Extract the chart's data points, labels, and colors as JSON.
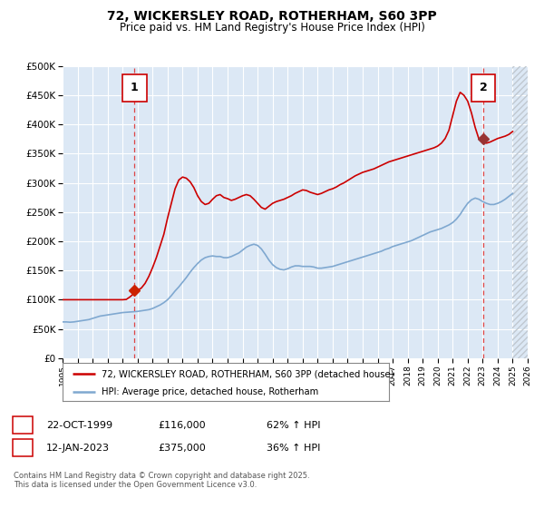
{
  "title": "72, WICKERSLEY ROAD, ROTHERHAM, S60 3PP",
  "subtitle": "Price paid vs. HM Land Registry's House Price Index (HPI)",
  "xlim": [
    1995,
    2026
  ],
  "ylim": [
    0,
    500000
  ],
  "yticks": [
    0,
    50000,
    100000,
    150000,
    200000,
    250000,
    300000,
    350000,
    400000,
    450000,
    500000
  ],
  "ytick_labels": [
    "£0",
    "£50K",
    "£100K",
    "£150K",
    "£200K",
    "£250K",
    "£300K",
    "£350K",
    "£400K",
    "£450K",
    "£500K"
  ],
  "xticks": [
    1995,
    1996,
    1997,
    1998,
    1999,
    2000,
    2001,
    2002,
    2003,
    2004,
    2005,
    2006,
    2007,
    2008,
    2009,
    2010,
    2011,
    2012,
    2013,
    2014,
    2015,
    2016,
    2017,
    2018,
    2019,
    2020,
    2021,
    2022,
    2023,
    2024,
    2025,
    2026
  ],
  "bg_color": "#dce8f5",
  "grid_color": "#ffffff",
  "hpi_line_color": "#7fa8d0",
  "price_line_color": "#cc0000",
  "marker1_color": "#cc2200",
  "marker2_color": "#993333",
  "vline_color": "#dd4444",
  "sale1_x": 1999.8,
  "sale1_y": 116000,
  "sale2_x": 2023.04,
  "sale2_y": 375000,
  "legend_label1": "72, WICKERSLEY ROAD, ROTHERHAM, S60 3PP (detached house)",
  "legend_label2": "HPI: Average price, detached house, Rotherham",
  "sale1_date": "22-OCT-1999",
  "sale1_price": "£116,000",
  "sale1_hpi": "62% ↑ HPI",
  "sale2_date": "12-JAN-2023",
  "sale2_price": "£375,000",
  "sale2_hpi": "36% ↑ HPI",
  "footer": "Contains HM Land Registry data © Crown copyright and database right 2025.\nThis data is licensed under the Open Government Licence v3.0.",
  "hpi_data_x": [
    1995.0,
    1995.25,
    1995.5,
    1995.75,
    1996.0,
    1996.25,
    1996.5,
    1996.75,
    1997.0,
    1997.25,
    1997.5,
    1997.75,
    1998.0,
    1998.25,
    1998.5,
    1998.75,
    1999.0,
    1999.25,
    1999.5,
    1999.75,
    2000.0,
    2000.25,
    2000.5,
    2000.75,
    2001.0,
    2001.25,
    2001.5,
    2001.75,
    2002.0,
    2002.25,
    2002.5,
    2002.75,
    2003.0,
    2003.25,
    2003.5,
    2003.75,
    2004.0,
    2004.25,
    2004.5,
    2004.75,
    2005.0,
    2005.25,
    2005.5,
    2005.75,
    2006.0,
    2006.25,
    2006.5,
    2006.75,
    2007.0,
    2007.25,
    2007.5,
    2007.75,
    2008.0,
    2008.25,
    2008.5,
    2008.75,
    2009.0,
    2009.25,
    2009.5,
    2009.75,
    2010.0,
    2010.25,
    2010.5,
    2010.75,
    2011.0,
    2011.25,
    2011.5,
    2011.75,
    2012.0,
    2012.25,
    2012.5,
    2012.75,
    2013.0,
    2013.25,
    2013.5,
    2013.75,
    2014.0,
    2014.25,
    2014.5,
    2014.75,
    2015.0,
    2015.25,
    2015.5,
    2015.75,
    2016.0,
    2016.25,
    2016.5,
    2016.75,
    2017.0,
    2017.25,
    2017.5,
    2017.75,
    2018.0,
    2018.25,
    2018.5,
    2018.75,
    2019.0,
    2019.25,
    2019.5,
    2019.75,
    2020.0,
    2020.25,
    2020.5,
    2020.75,
    2021.0,
    2021.25,
    2021.5,
    2021.75,
    2022.0,
    2022.25,
    2022.5,
    2022.75,
    2023.0,
    2023.25,
    2023.5,
    2023.75,
    2024.0,
    2024.25,
    2024.5,
    2024.75,
    2025.0
  ],
  "hpi_data_y": [
    62000,
    62000,
    61500,
    62000,
    63000,
    64000,
    65000,
    66000,
    68000,
    70000,
    72000,
    73000,
    74000,
    75000,
    76000,
    77000,
    78000,
    78500,
    79000,
    79500,
    80000,
    81000,
    82000,
    83000,
    85000,
    88000,
    91000,
    95000,
    100000,
    107000,
    115000,
    122000,
    130000,
    138000,
    147000,
    155000,
    162000,
    168000,
    172000,
    174000,
    175000,
    174000,
    174000,
    172000,
    172000,
    174000,
    177000,
    180000,
    185000,
    190000,
    193000,
    195000,
    193000,
    187000,
    178000,
    168000,
    160000,
    155000,
    152000,
    151000,
    153000,
    156000,
    158000,
    158000,
    157000,
    157000,
    157000,
    156000,
    154000,
    154000,
    155000,
    156000,
    157000,
    159000,
    161000,
    163000,
    165000,
    167000,
    169000,
    171000,
    173000,
    175000,
    177000,
    179000,
    181000,
    183000,
    186000,
    188000,
    191000,
    193000,
    195000,
    197000,
    199000,
    201000,
    204000,
    207000,
    210000,
    213000,
    216000,
    218000,
    220000,
    222000,
    225000,
    228000,
    232000,
    238000,
    246000,
    256000,
    265000,
    271000,
    274000,
    272000,
    268000,
    265000,
    263000,
    263000,
    265000,
    268000,
    272000,
    277000,
    282000
  ],
  "price_data_x": [
    1995.0,
    1995.25,
    1995.5,
    1995.75,
    1996.0,
    1996.25,
    1996.5,
    1996.75,
    1997.0,
    1997.25,
    1997.5,
    1997.75,
    1998.0,
    1998.25,
    1998.5,
    1998.75,
    1999.0,
    1999.25,
    1999.5,
    1999.75,
    2000.0,
    2000.25,
    2000.5,
    2000.75,
    2001.0,
    2001.25,
    2001.5,
    2001.75,
    2002.0,
    2002.25,
    2002.5,
    2002.75,
    2003.0,
    2003.25,
    2003.5,
    2003.75,
    2004.0,
    2004.25,
    2004.5,
    2004.75,
    2005.0,
    2005.25,
    2005.5,
    2005.75,
    2006.0,
    2006.25,
    2006.5,
    2006.75,
    2007.0,
    2007.25,
    2007.5,
    2007.75,
    2008.0,
    2008.25,
    2008.5,
    2008.75,
    2009.0,
    2009.25,
    2009.5,
    2009.75,
    2010.0,
    2010.25,
    2010.5,
    2010.75,
    2011.0,
    2011.25,
    2011.5,
    2011.75,
    2012.0,
    2012.25,
    2012.5,
    2012.75,
    2013.0,
    2013.25,
    2013.5,
    2013.75,
    2014.0,
    2014.25,
    2014.5,
    2014.75,
    2015.0,
    2015.25,
    2015.5,
    2015.75,
    2016.0,
    2016.25,
    2016.5,
    2016.75,
    2017.0,
    2017.25,
    2017.5,
    2017.75,
    2018.0,
    2018.25,
    2018.5,
    2018.75,
    2019.0,
    2019.25,
    2019.5,
    2019.75,
    2020.0,
    2020.25,
    2020.5,
    2020.75,
    2021.0,
    2021.25,
    2021.5,
    2021.75,
    2022.0,
    2022.25,
    2022.5,
    2022.75,
    2023.0,
    2023.25,
    2023.5,
    2023.75,
    2024.0,
    2024.25,
    2024.5,
    2024.75,
    2025.0
  ],
  "price_data_y": [
    100000,
    100000,
    100000,
    100000,
    100000,
    100000,
    100000,
    100000,
    100000,
    100000,
    100000,
    100000,
    100000,
    100000,
    100000,
    100000,
    100000,
    100500,
    105000,
    110500,
    116000,
    120000,
    128000,
    140000,
    155000,
    172000,
    192000,
    212000,
    240000,
    265000,
    290000,
    305000,
    310000,
    308000,
    302000,
    292000,
    278000,
    268000,
    263000,
    265000,
    272000,
    278000,
    280000,
    275000,
    273000,
    270000,
    272000,
    275000,
    278000,
    280000,
    278000,
    272000,
    265000,
    258000,
    255000,
    260000,
    265000,
    268000,
    270000,
    272000,
    275000,
    278000,
    282000,
    285000,
    288000,
    287000,
    284000,
    282000,
    280000,
    282000,
    285000,
    288000,
    290000,
    293000,
    297000,
    300000,
    304000,
    308000,
    312000,
    315000,
    318000,
    320000,
    322000,
    324000,
    327000,
    330000,
    333000,
    336000,
    338000,
    340000,
    342000,
    344000,
    346000,
    348000,
    350000,
    352000,
    354000,
    356000,
    358000,
    360000,
    363000,
    368000,
    376000,
    390000,
    415000,
    440000,
    455000,
    450000,
    440000,
    420000,
    395000,
    375000,
    370000,
    368000,
    370000,
    373000,
    376000,
    378000,
    380000,
    383000,
    388000
  ]
}
